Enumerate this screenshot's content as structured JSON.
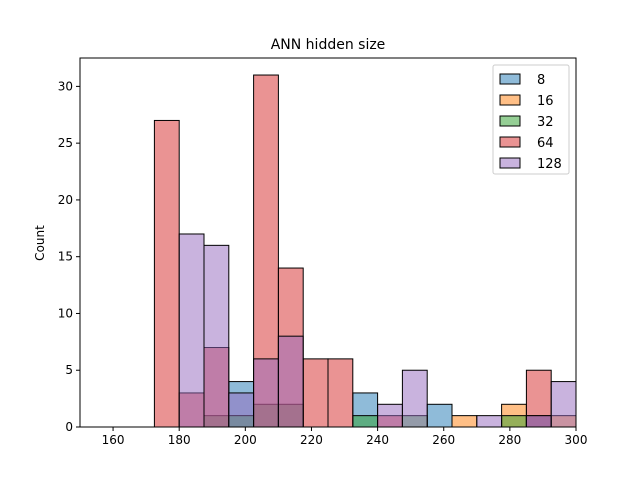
{
  "chart_data": {
    "type": "histogram",
    "title": "ANN hidden size",
    "xlabel": "",
    "ylabel": "Count",
    "xlim": [
      150,
      300
    ],
    "ylim": [
      0,
      32.5
    ],
    "xticks": [
      160,
      180,
      200,
      220,
      240,
      260,
      280,
      300
    ],
    "yticks": [
      0,
      5,
      10,
      15,
      20,
      25,
      30
    ],
    "bins": [
      [
        150,
        157.5
      ],
      [
        157.5,
        165
      ],
      [
        165,
        172.5
      ],
      [
        172.5,
        180
      ],
      [
        180,
        187.5
      ],
      [
        187.5,
        195
      ],
      [
        195,
        202.5
      ],
      [
        202.5,
        210
      ],
      [
        210,
        217.5
      ],
      [
        217.5,
        225
      ],
      [
        225,
        232.5
      ],
      [
        232.5,
        240
      ],
      [
        240,
        247.5
      ],
      [
        247.5,
        255
      ],
      [
        255,
        262.5
      ],
      [
        262.5,
        270
      ],
      [
        270,
        277.5
      ],
      [
        277.5,
        285
      ],
      [
        285,
        292.5
      ],
      [
        292.5,
        300
      ]
    ],
    "legend_position": "top-right",
    "grid": false,
    "series": [
      {
        "name": "8",
        "color": "#1f77b4",
        "values": [
          0,
          0,
          0,
          0,
          0,
          0,
          4,
          0,
          0,
          0,
          0,
          3,
          0,
          0,
          2,
          0,
          0,
          0,
          1,
          0
        ]
      },
      {
        "name": "16",
        "color": "#ff7f0e",
        "values": [
          0,
          0,
          0,
          0,
          0,
          0,
          0,
          0,
          0,
          0,
          0,
          0,
          0,
          0,
          0,
          1,
          0,
          2,
          0,
          1
        ]
      },
      {
        "name": "32",
        "color": "#2ca02c",
        "values": [
          0,
          0,
          0,
          0,
          0,
          1,
          1,
          2,
          2,
          0,
          0,
          1,
          0,
          1,
          0,
          0,
          0,
          1,
          0,
          0
        ]
      },
      {
        "name": "64",
        "color": "#d62728",
        "values": [
          0,
          0,
          0,
          27,
          3,
          7,
          0,
          31,
          14,
          6,
          6,
          0,
          1,
          0,
          0,
          0,
          0,
          0,
          5,
          0
        ]
      },
      {
        "name": "128",
        "color": "#9467bd",
        "values": [
          0,
          0,
          0,
          0,
          17,
          16,
          3,
          6,
          8,
          0,
          0,
          0,
          2,
          5,
          0,
          0,
          1,
          0,
          1,
          4
        ]
      }
    ]
  }
}
